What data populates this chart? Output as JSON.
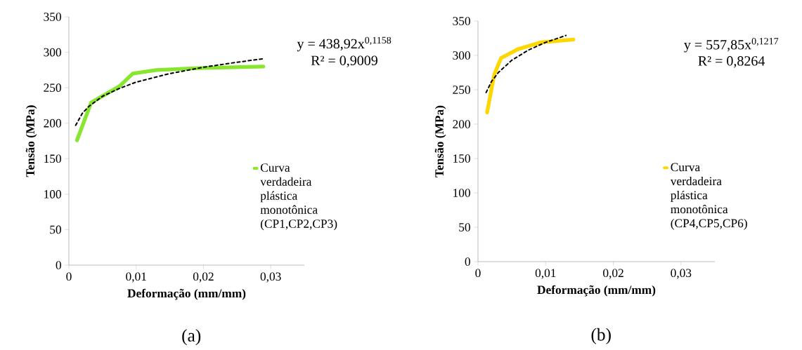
{
  "chart_data": [
    {
      "type": "line",
      "xlabel": "Deformação (mm/mm)",
      "ylabel": "Tensão (MPa)",
      "xlim": [
        0,
        0.035
      ],
      "ylim": [
        0,
        350
      ],
      "xticks": [
        0,
        {
          "value": 0.01,
          "label": "0,01"
        },
        {
          "value": 0.02,
          "label": "0,02"
        },
        {
          "value": 0.03,
          "label": "0,03"
        }
      ],
      "yticks": [
        0,
        50,
        100,
        150,
        200,
        250,
        300,
        350
      ],
      "legend": "right",
      "annotations": [
        "y = 438,92x$^{0,1158}$",
        "R² = 0,9009",
        "(a)"
      ],
      "series": [
        {
          "name": "Curva verdadeira plástica monotônica (CP1,CP2,CP3)",
          "color": "#88e62e",
          "x": [
            0.0012,
            0.0033,
            0.0075,
            0.0095,
            0.013,
            0.02,
            0.0289
          ],
          "values": [
            176,
            229,
            252,
            270,
            275,
            278,
            280
          ]
        },
        {
          "color": "#000000",
          "line_style": "dashed",
          "x": [
            0.001,
            0.002,
            0.003,
            0.005,
            0.0075,
            0.01,
            0.015,
            0.02,
            0.025,
            0.029
          ],
          "values": [
            197,
            214,
            224,
            238,
            249,
            258,
            270,
            279,
            286,
            291
          ]
        }
      ]
    },
    {
      "type": "line",
      "xlabel": "Deformação (mm/mm)",
      "ylabel": "Tensão (MPa)",
      "xlim": [
        0,
        0.035
      ],
      "ylim": [
        0,
        350
      ],
      "xticks": [
        0,
        {
          "value": 0.01,
          "label": "0,01"
        },
        {
          "value": 0.02,
          "label": "0,02"
        },
        {
          "value": 0.03,
          "label": "0,03"
        }
      ],
      "yticks": [
        0,
        50,
        100,
        150,
        200,
        250,
        300,
        350
      ],
      "legend": "right",
      "annotations": [
        "y = 557,85x$^{0,1217}$",
        "R² = 0,8264",
        "(b)"
      ],
      "series": [
        {
          "name": "Curva verdadeira plástica monotônica (CP4,CP5,CP6)",
          "color": "#ffd700",
          "x": [
            0.00135,
            0.0024,
            0.0034,
            0.0059,
            0.0093,
            0.0141
          ],
          "values": [
            217,
            272,
            296,
            309,
            319,
            323
          ]
        },
        {
          "color": "#000000",
          "line_style": "dashed",
          "x": [
            0.0012,
            0.002,
            0.003,
            0.005,
            0.0075,
            0.01,
            0.013
          ],
          "values": [
            246,
            262,
            275,
            293,
            308,
            319,
            329
          ]
        }
      ]
    }
  ]
}
